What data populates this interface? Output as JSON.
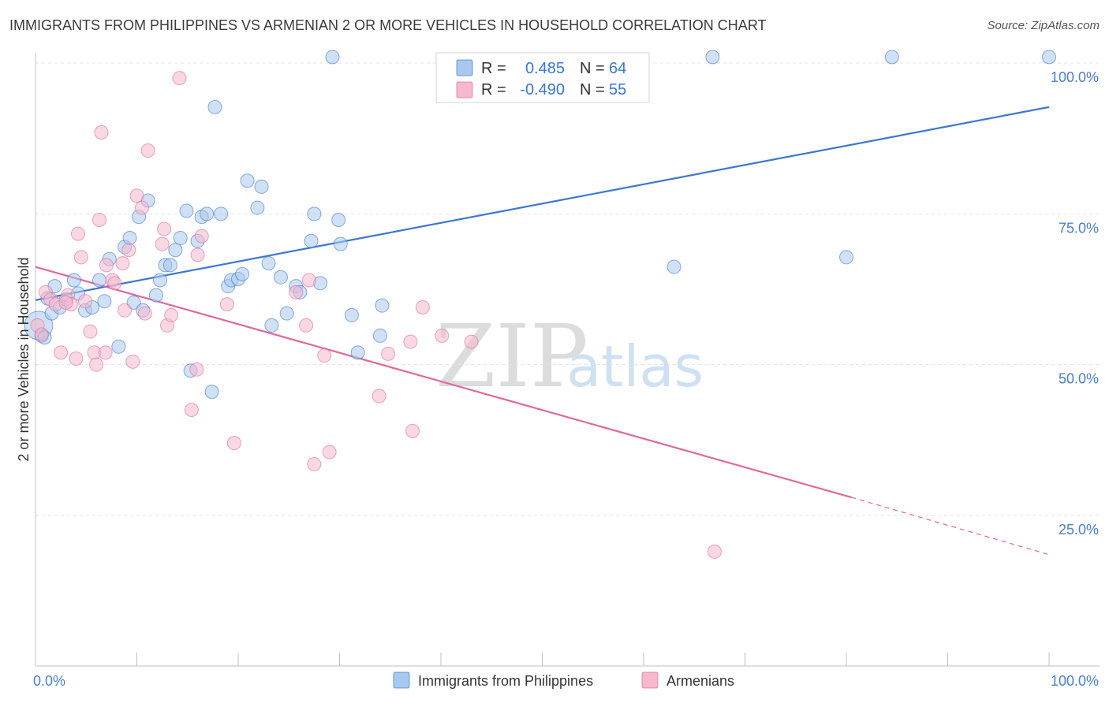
{
  "header": {
    "title": "IMMIGRANTS FROM PHILIPPINES VS ARMENIAN 2 OR MORE VEHICLES IN HOUSEHOLD CORRELATION CHART",
    "source": "Source: ZipAtlas.com"
  },
  "watermark": {
    "zip": "ZIP",
    "atlas": "atlas"
  },
  "colors": {
    "blue": "#3b78d0",
    "blue_fill": "#a9c8ee",
    "pink": "#e0689a",
    "pink_fill": "#f5b8cc"
  },
  "legend": {
    "rows": [
      {
        "r_label": "R =",
        "r_value": "0.485",
        "n_label": "N =",
        "n_value": "64"
      },
      {
        "r_label": "R =",
        "r_value": "-0.490",
        "n_label": "N =",
        "n_value": "55"
      }
    ]
  },
  "chart_data": {
    "type": "scatter",
    "xlabel": "",
    "ylabel": "2 or more Vehicles in Household",
    "xlim": [
      0,
      100
    ],
    "ylim": [
      0,
      105
    ],
    "x_tick_labels": [
      "0.0%",
      "100.0%"
    ],
    "y_tick_labels": [
      {
        "value": 25,
        "label": "25.0%"
      },
      {
        "value": 50,
        "label": "50.0%"
      },
      {
        "value": 75,
        "label": "75.0%"
      },
      {
        "value": 100,
        "label": "100.0%"
      }
    ],
    "legend_placement": "bottom",
    "grid": true,
    "series": [
      {
        "name": "Immigrants from Philippines",
        "color": "#3b78d0",
        "trend": {
          "x": [
            0,
            100
          ],
          "y": [
            60.7,
            92.7
          ]
        },
        "points": [
          [
            0.3,
            56.5
          ],
          [
            0.6,
            54.8
          ],
          [
            1.2,
            61.0
          ],
          [
            1.6,
            58.5
          ],
          [
            1.9,
            63.0
          ],
          [
            2.4,
            59.5
          ],
          [
            3.0,
            60.8
          ],
          [
            3.8,
            64.0
          ],
          [
            4.2,
            61.8
          ],
          [
            4.9,
            59.0
          ],
          [
            5.6,
            59.5
          ],
          [
            6.3,
            64.0
          ],
          [
            6.8,
            60.5
          ],
          [
            7.3,
            67.5
          ],
          [
            8.2,
            53.0
          ],
          [
            8.8,
            69.5
          ],
          [
            9.3,
            71.0
          ],
          [
            9.7,
            60.3
          ],
          [
            10.2,
            74.5
          ],
          [
            10.6,
            59.0
          ],
          [
            11.1,
            77.2
          ],
          [
            11.9,
            61.5
          ],
          [
            12.3,
            64.0
          ],
          [
            12.8,
            66.5
          ],
          [
            13.3,
            66.5
          ],
          [
            13.8,
            69.0
          ],
          [
            14.3,
            71.0
          ],
          [
            14.9,
            75.5
          ],
          [
            15.3,
            49.0
          ],
          [
            16.0,
            70.5
          ],
          [
            16.4,
            74.5
          ],
          [
            16.9,
            75.0
          ],
          [
            17.4,
            45.5
          ],
          [
            17.7,
            92.7
          ],
          [
            18.3,
            75.0
          ],
          [
            19.0,
            63.0
          ],
          [
            19.3,
            64.0
          ],
          [
            20.0,
            64.2
          ],
          [
            20.4,
            65.0
          ],
          [
            20.9,
            80.5
          ],
          [
            21.9,
            76.0
          ],
          [
            22.3,
            79.5
          ],
          [
            23.0,
            66.8
          ],
          [
            23.3,
            56.5
          ],
          [
            24.2,
            64.5
          ],
          [
            24.8,
            58.5
          ],
          [
            25.7,
            63.0
          ],
          [
            26.1,
            62.0
          ],
          [
            27.2,
            70.5
          ],
          [
            27.5,
            75.0
          ],
          [
            28.1,
            63.5
          ],
          [
            29.9,
            74.0
          ],
          [
            30.1,
            70.0
          ],
          [
            31.2,
            58.2
          ],
          [
            31.8,
            52.0
          ],
          [
            34.0,
            54.8
          ],
          [
            34.2,
            59.8
          ],
          [
            29.3,
            101.0
          ],
          [
            63.0,
            66.2
          ],
          [
            84.5,
            101.0
          ],
          [
            66.8,
            101.0
          ],
          [
            80.0,
            67.8
          ],
          [
            100.0,
            101.0
          ],
          [
            0.9,
            54.5
          ]
        ]
      },
      {
        "name": "Armenians",
        "color": "#e0689a",
        "trend": {
          "x": [
            0,
            80.5
          ],
          "y": [
            66.2,
            28.0
          ]
        },
        "trend_dashed": {
          "x": [
            80.5,
            100
          ],
          "y": [
            28.0,
            18.5
          ]
        },
        "points": [
          [
            0.2,
            56.5
          ],
          [
            0.6,
            55.0
          ],
          [
            1.0,
            62.0
          ],
          [
            1.5,
            60.8
          ],
          [
            2.0,
            60.0
          ],
          [
            2.5,
            52.0
          ],
          [
            3.2,
            61.5
          ],
          [
            3.5,
            60.0
          ],
          [
            4.0,
            51.0
          ],
          [
            4.2,
            71.7
          ],
          [
            4.5,
            67.8
          ],
          [
            4.9,
            60.5
          ],
          [
            5.4,
            55.5
          ],
          [
            5.8,
            52.0
          ],
          [
            6.0,
            50.0
          ],
          [
            6.3,
            74.0
          ],
          [
            6.5,
            88.5
          ],
          [
            6.9,
            52.0
          ],
          [
            7.0,
            66.5
          ],
          [
            7.6,
            64.0
          ],
          [
            7.8,
            63.5
          ],
          [
            8.6,
            66.8
          ],
          [
            8.8,
            59.0
          ],
          [
            9.2,
            69.0
          ],
          [
            9.6,
            50.5
          ],
          [
            10.0,
            78.0
          ],
          [
            10.5,
            76.0
          ],
          [
            10.8,
            58.5
          ],
          [
            11.1,
            85.5
          ],
          [
            12.5,
            70.0
          ],
          [
            12.7,
            72.5
          ],
          [
            13.0,
            56.5
          ],
          [
            13.4,
            58.2
          ],
          [
            14.2,
            97.5
          ],
          [
            15.4,
            42.5
          ],
          [
            15.9,
            49.2
          ],
          [
            16.0,
            68.2
          ],
          [
            16.4,
            71.3
          ],
          [
            18.9,
            60.0
          ],
          [
            19.6,
            37.0
          ],
          [
            25.7,
            62.0
          ],
          [
            26.7,
            56.5
          ],
          [
            27.0,
            64.0
          ],
          [
            27.5,
            33.5
          ],
          [
            28.5,
            51.5
          ],
          [
            29.0,
            35.5
          ],
          [
            33.9,
            44.8
          ],
          [
            34.8,
            51.8
          ],
          [
            37.0,
            53.8
          ],
          [
            37.2,
            39.0
          ],
          [
            38.2,
            59.5
          ],
          [
            40.1,
            54.8
          ],
          [
            43.0,
            53.8
          ],
          [
            67.0,
            19.0
          ],
          [
            3.0,
            60.3
          ]
        ]
      }
    ]
  }
}
